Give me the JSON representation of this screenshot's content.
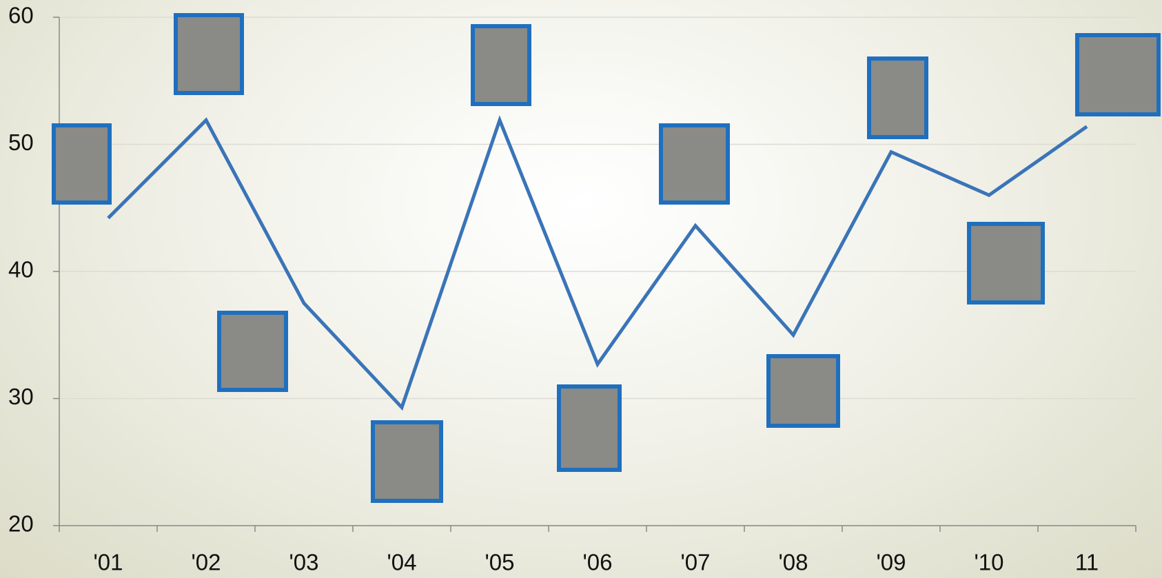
{
  "chart_data": {
    "type": "line",
    "categories": [
      "'01",
      "'02",
      "'03",
      "'04",
      "'05",
      "'06",
      "'07",
      "'08",
      "'09",
      "'10",
      "11"
    ],
    "series": [
      {
        "color": "#3a74b8",
        "values": [
          44.2,
          51.9,
          37.5,
          29.3,
          51.9,
          32.7,
          43.6,
          35.0,
          49.4,
          46.0,
          51.4
        ]
      }
    ],
    "ylim": [
      20,
      60
    ],
    "yticks": [
      20,
      30,
      40,
      50,
      60
    ],
    "grid": true
  }
}
